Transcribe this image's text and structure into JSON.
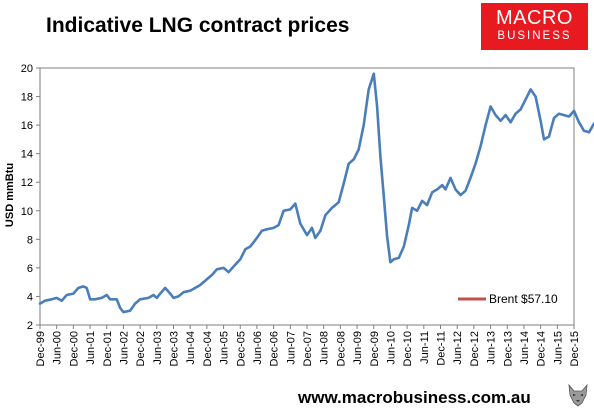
{
  "header": {
    "title": "Indicative LNG contract prices"
  },
  "logo": {
    "line1": "MACRO",
    "line2": "BUSINESS",
    "color": "#e8191f"
  },
  "footer": {
    "url": "www.macrobusiness.com.au",
    "wolf_icon": "wolf-head-icon"
  },
  "chart_data": {
    "type": "line",
    "title": "Indicative LNG contract prices",
    "ylabel": "USD mmBtu",
    "xlabel": "",
    "ylim": [
      2,
      20
    ],
    "yticks": [
      2,
      4,
      6,
      8,
      10,
      12,
      14,
      16,
      18,
      20
    ],
    "grid": false,
    "legend_position": "bottom-right",
    "xtick_labels": [
      "Dec-99",
      "Jun-00",
      "Dec-00",
      "Jun-01",
      "Dec-01",
      "Jun-02",
      "Dec-02",
      "Jun-03",
      "Dec-03",
      "Jun-04",
      "Dec-04",
      "Jun-05",
      "Dec-05",
      "Jun-06",
      "Dec-06",
      "Jun-07",
      "Dec-07",
      "Jun-08",
      "Dec-08",
      "Jun-09",
      "Dec-09",
      "Jun-10",
      "Dec-10",
      "Jun-11",
      "Dec-11",
      "Jun-12",
      "Dec-12",
      "Jun-13",
      "Dec-13",
      "Jun-14",
      "Dec-14",
      "Jun-15",
      "Dec-15"
    ],
    "series": [
      {
        "name": "",
        "color": "#4a7ebb",
        "points": [
          [
            0,
            3.5
          ],
          [
            0.3,
            3.7
          ],
          [
            0.7,
            3.8
          ],
          [
            1,
            3.9
          ],
          [
            1.3,
            3.7
          ],
          [
            1.6,
            4.1
          ],
          [
            2,
            4.2
          ],
          [
            2.3,
            4.6
          ],
          [
            2.6,
            4.7
          ],
          [
            2.8,
            4.6
          ],
          [
            3,
            3.8
          ],
          [
            3.3,
            3.8
          ],
          [
            3.7,
            3.9
          ],
          [
            4,
            4.1
          ],
          [
            4.2,
            3.8
          ],
          [
            4.6,
            3.8
          ],
          [
            4.8,
            3.2
          ],
          [
            5,
            2.9
          ],
          [
            5.4,
            3.0
          ],
          [
            5.7,
            3.5
          ],
          [
            6,
            3.8
          ],
          [
            6.5,
            3.9
          ],
          [
            6.8,
            4.1
          ],
          [
            7,
            3.9
          ],
          [
            7.2,
            4.2
          ],
          [
            7.5,
            4.6
          ],
          [
            7.8,
            4.2
          ],
          [
            8,
            3.9
          ],
          [
            8.3,
            4.0
          ],
          [
            8.6,
            4.3
          ],
          [
            9,
            4.4
          ],
          [
            9.3,
            4.6
          ],
          [
            9.6,
            4.8
          ],
          [
            10,
            5.2
          ],
          [
            10.3,
            5.5
          ],
          [
            10.6,
            5.9
          ],
          [
            11,
            6.0
          ],
          [
            11.3,
            5.7
          ],
          [
            11.6,
            6.1
          ],
          [
            12,
            6.6
          ],
          [
            12.3,
            7.3
          ],
          [
            12.6,
            7.5
          ],
          [
            13,
            8.1
          ],
          [
            13.3,
            8.6
          ],
          [
            13.6,
            8.7
          ],
          [
            14,
            8.8
          ],
          [
            14.3,
            9.0
          ],
          [
            14.6,
            10.0
          ],
          [
            15,
            10.1
          ],
          [
            15.3,
            10.5
          ],
          [
            15.6,
            9.1
          ],
          [
            16,
            8.3
          ],
          [
            16.3,
            8.8
          ],
          [
            16.5,
            8.1
          ],
          [
            16.8,
            8.6
          ],
          [
            17.1,
            9.7
          ],
          [
            17.5,
            10.2
          ],
          [
            17.9,
            10.6
          ],
          [
            18.2,
            11.9
          ],
          [
            18.5,
            13.3
          ],
          [
            18.8,
            13.6
          ],
          [
            19.1,
            14.3
          ],
          [
            19.4,
            16.0
          ],
          [
            19.7,
            18.5
          ],
          [
            20,
            19.6
          ],
          [
            20.2,
            17.3
          ],
          [
            20.4,
            13.8
          ],
          [
            20.6,
            11.0
          ],
          [
            20.8,
            8.2
          ],
          [
            21,
            6.4
          ],
          [
            21.2,
            6.6
          ],
          [
            21.5,
            6.7
          ],
          [
            21.8,
            7.5
          ],
          [
            22.1,
            9.0
          ],
          [
            22.3,
            10.2
          ],
          [
            22.6,
            10.0
          ],
          [
            22.9,
            10.7
          ],
          [
            23.2,
            10.4
          ],
          [
            23.5,
            11.3
          ],
          [
            23.8,
            11.5
          ],
          [
            24.1,
            11.8
          ],
          [
            24.3,
            11.5
          ],
          [
            24.6,
            12.3
          ],
          [
            24.9,
            11.5
          ],
          [
            25.2,
            11.1
          ],
          [
            25.5,
            11.4
          ],
          [
            25.8,
            12.3
          ],
          [
            26.1,
            13.3
          ],
          [
            26.4,
            14.5
          ],
          [
            26.7,
            16.0
          ],
          [
            27,
            17.3
          ],
          [
            27.3,
            16.7
          ],
          [
            27.6,
            16.3
          ],
          [
            27.9,
            16.7
          ],
          [
            28.2,
            16.2
          ],
          [
            28.5,
            16.8
          ],
          [
            28.8,
            17.1
          ],
          [
            29.1,
            17.8
          ],
          [
            29.4,
            18.5
          ],
          [
            29.7,
            18.0
          ],
          [
            30,
            16.3
          ],
          [
            30.2,
            15.0
          ],
          [
            30.5,
            15.2
          ],
          [
            30.8,
            16.5
          ],
          [
            31.1,
            16.8
          ],
          [
            31.4,
            16.7
          ],
          [
            31.7,
            16.6
          ],
          [
            32,
            17.0
          ],
          [
            32.3,
            16.2
          ],
          [
            32.6,
            15.6
          ],
          [
            32.9,
            15.5
          ],
          [
            33.2,
            16.1
          ],
          [
            33.5,
            16.5
          ],
          [
            33.8,
            16.6
          ],
          [
            34.1,
            16.4
          ],
          [
            34.4,
            16.1
          ],
          [
            34.7,
            15.9
          ],
          [
            35,
            16.1
          ],
          [
            35.3,
            16.4
          ],
          [
            35.6,
            15.6
          ],
          [
            35.9,
            15.4
          ],
          [
            36.1,
            12.8
          ],
          [
            36.4,
            11.2
          ],
          [
            36.6,
            9.7
          ],
          [
            36.8,
            8.8
          ],
          [
            37,
            9.0
          ],
          [
            37.2,
            8.2
          ],
          [
            37.4,
            9.3
          ]
        ]
      },
      {
        "name": "Brent $57.10",
        "color": "#c0504d",
        "points": [
          [
            37.4,
            9.6
          ],
          [
            37.55,
            9.5
          ],
          [
            37.7,
            9.2
          ],
          [
            37.82,
            8.1
          ]
        ]
      }
    ]
  }
}
